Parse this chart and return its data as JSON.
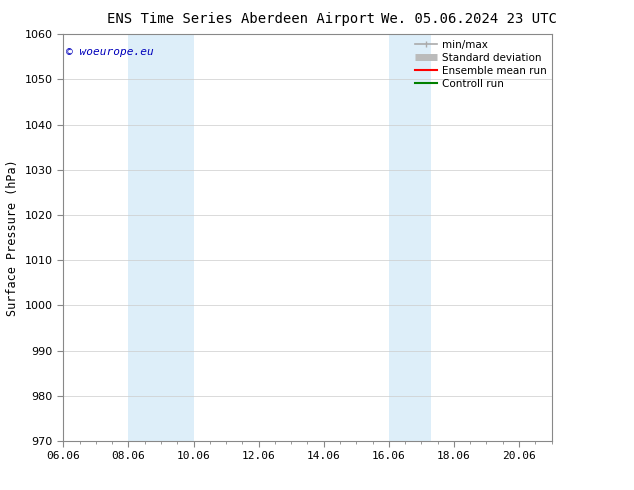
{
  "title_left": "ENS Time Series Aberdeen Airport",
  "title_right": "We. 05.06.2024 23 UTC",
  "ylabel": "Surface Pressure (hPa)",
  "ylim": [
    970,
    1060
  ],
  "yticks": [
    970,
    980,
    990,
    1000,
    1010,
    1020,
    1030,
    1040,
    1050,
    1060
  ],
  "xlim_start": 0.0,
  "xlim_end": 15.0,
  "xtick_labels": [
    "06.06",
    "08.06",
    "10.06",
    "12.06",
    "14.06",
    "16.06",
    "18.06",
    "20.06"
  ],
  "xtick_positions": [
    0,
    2,
    4,
    6,
    8,
    10,
    12,
    14
  ],
  "shaded_bands": [
    {
      "xmin": 2.0,
      "xmax": 4.0,
      "color": "#ddeef9"
    },
    {
      "xmin": 10.0,
      "xmax": 11.3,
      "color": "#ddeef9"
    }
  ],
  "watermark_text": "© woeurope.eu",
  "watermark_color": "#0000bb",
  "legend_items": [
    {
      "label": "min/max",
      "color": "#aaaaaa",
      "lw": 1.2,
      "type": "minmax"
    },
    {
      "label": "Standard deviation",
      "color": "#bbbbbb",
      "lw": 5,
      "type": "band"
    },
    {
      "label": "Ensemble mean run",
      "color": "#ff0000",
      "lw": 1.5,
      "type": "line"
    },
    {
      "label": "Controll run",
      "color": "#008000",
      "lw": 1.5,
      "type": "line"
    }
  ],
  "bg_color": "#ffffff",
  "grid_color": "#cccccc",
  "title_fontsize": 10,
  "axis_fontsize": 8.5,
  "tick_fontsize": 8,
  "legend_fontsize": 7.5
}
